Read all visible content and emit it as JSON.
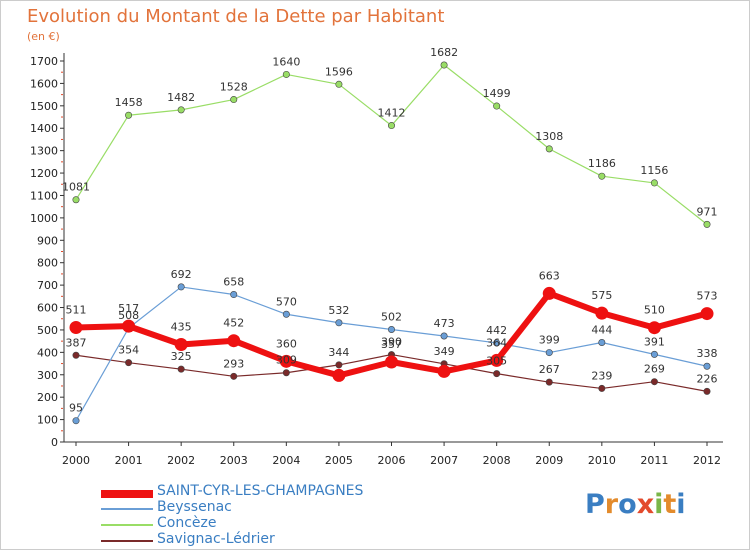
{
  "title": "Evolution du Montant de la Dette par Habitant",
  "subtitle": "(en €)",
  "brand": {
    "letters": [
      "P",
      "r",
      "o",
      "x",
      "i",
      "t",
      "i"
    ],
    "colors": [
      "#3a7ec2",
      "#e38b2c",
      "#3a7ec2",
      "#e34a2c",
      "#7ab648",
      "#e38b2c",
      "#3a7ec2"
    ]
  },
  "chart_data": {
    "type": "line",
    "x": [
      "2000",
      "2001",
      "2002",
      "2003",
      "2004",
      "2005",
      "2006",
      "2007",
      "2008",
      "2009",
      "2010",
      "2011",
      "2012"
    ],
    "ylim": [
      0,
      1700
    ],
    "yticks": [
      0,
      100,
      200,
      300,
      400,
      500,
      600,
      700,
      800,
      900,
      1000,
      1100,
      1200,
      1300,
      1400,
      1500,
      1600,
      1700
    ],
    "grid": false,
    "legend_position": "bottom-left",
    "series": [
      {
        "name": "SAINT-CYR-LES-CHAMPAGNES",
        "color": "#ee1111",
        "values": [
          511,
          517,
          435,
          452,
          360,
          297,
          357,
          315,
          364,
          663,
          575,
          510,
          573
        ],
        "labels": [
          "511",
          "517",
          "435",
          "452",
          "360",
          "",
          "357",
          "",
          "364",
          "663",
          "575",
          "510",
          "573"
        ],
        "emphasis": true
      },
      {
        "name": "Beyssenac",
        "color": "#6a9ed6",
        "values": [
          95,
          508,
          692,
          658,
          570,
          532,
          502,
          473,
          442,
          399,
          444,
          391,
          338
        ],
        "labels": [
          "95",
          "508",
          "692",
          "658",
          "570",
          "532",
          "502",
          "473",
          "442",
          "399",
          "444",
          "391",
          "338"
        ]
      },
      {
        "name": "Concèze",
        "color": "#99dd66",
        "values": [
          1081,
          1458,
          1482,
          1528,
          1640,
          1596,
          1412,
          1682,
          1499,
          1308,
          1186,
          1156,
          971
        ],
        "labels": [
          "1081",
          "1458",
          "1482",
          "1528",
          "1640",
          "1596",
          "1412",
          "1682",
          "1499",
          "1308",
          "1186",
          "1156",
          "971"
        ]
      },
      {
        "name": "Savignac-Lédrier",
        "color": "#7a2a2a",
        "values": [
          387,
          354,
          325,
          293,
          309,
          344,
          390,
          349,
          305,
          267,
          239,
          269,
          226
        ],
        "labels": [
          "387",
          "354",
          "325",
          "293",
          "309",
          "344",
          "390",
          "349",
          "305",
          "267",
          "239",
          "269",
          "226"
        ]
      }
    ]
  }
}
